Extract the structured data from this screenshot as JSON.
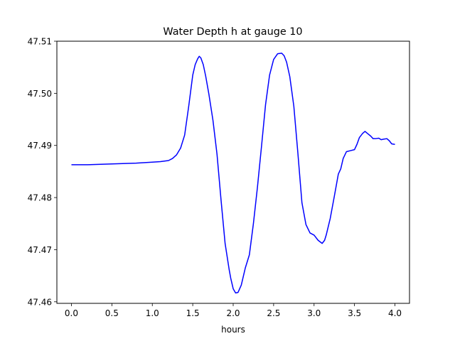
{
  "chart_data": {
    "type": "line",
    "title": "Water Depth h at gauge 10",
    "xlabel": "hours",
    "ylabel": "",
    "xlim": [
      -0.18,
      4.18
    ],
    "ylim": [
      47.4597,
      47.51
    ],
    "grid": false,
    "xticks": [
      0.0,
      0.5,
      1.0,
      1.5,
      2.0,
      2.5,
      3.0,
      3.5,
      4.0
    ],
    "xtick_labels": [
      "0.0",
      "0.5",
      "1.0",
      "1.5",
      "2.0",
      "2.5",
      "3.0",
      "3.5",
      "4.0"
    ],
    "yticks": [
      47.46,
      47.47,
      47.48,
      47.49,
      47.5,
      47.51
    ],
    "ytick_labels": [
      "47.46",
      "47.47",
      "47.48",
      "47.49",
      "47.50",
      "47.51"
    ],
    "series": [
      {
        "color": "#0000ff",
        "x": [
          0.0,
          0.2,
          0.4,
          0.6,
          0.8,
          1.0,
          1.1,
          1.2,
          1.25,
          1.3,
          1.35,
          1.4,
          1.45,
          1.5,
          1.53,
          1.56,
          1.58,
          1.6,
          1.63,
          1.66,
          1.7,
          1.75,
          1.8,
          1.85,
          1.9,
          1.95,
          1.97,
          2.0,
          2.03,
          2.06,
          2.1,
          2.15,
          2.2,
          2.25,
          2.3,
          2.35,
          2.4,
          2.45,
          2.5,
          2.55,
          2.6,
          2.63,
          2.66,
          2.7,
          2.75,
          2.8,
          2.85,
          2.9,
          2.95,
          3.0,
          3.05,
          3.1,
          3.13,
          3.15,
          3.2,
          3.25,
          3.3,
          3.33,
          3.36,
          3.4,
          3.45,
          3.5,
          3.53,
          3.56,
          3.6,
          3.63,
          3.66,
          3.7,
          3.73,
          3.76,
          3.8,
          3.83,
          3.86,
          3.9,
          3.93,
          3.96,
          4.0
        ],
        "y": [
          47.4863,
          47.4863,
          47.4864,
          47.4865,
          47.4866,
          47.4868,
          47.4869,
          47.4871,
          47.4875,
          47.4882,
          47.4895,
          47.492,
          47.4975,
          47.5035,
          47.5055,
          47.5066,
          47.5071,
          47.5068,
          47.5055,
          47.5033,
          47.4998,
          47.4948,
          47.4883,
          47.4795,
          47.4712,
          47.4662,
          47.4645,
          47.4625,
          47.4617,
          47.4618,
          47.4632,
          47.4665,
          47.469,
          47.475,
          47.482,
          47.4898,
          47.4978,
          47.5035,
          47.5065,
          47.5076,
          47.5077,
          47.5072,
          47.506,
          47.5032,
          47.4975,
          47.4885,
          47.479,
          47.4748,
          47.4732,
          47.4728,
          47.4718,
          47.4712,
          47.4718,
          47.4728,
          47.476,
          47.4802,
          47.4845,
          47.4855,
          47.4875,
          47.4888,
          47.489,
          47.4892,
          47.4902,
          47.4915,
          47.4923,
          47.4927,
          47.4923,
          47.4918,
          47.4913,
          47.4913,
          47.4914,
          47.4911,
          47.4912,
          47.4913,
          47.4909,
          47.4903,
          47.4902
        ]
      }
    ]
  }
}
